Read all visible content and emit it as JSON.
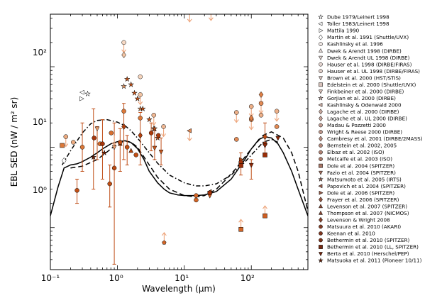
{
  "chart_data": {
    "type": "scatter",
    "title": "",
    "xlabel": "Wavelength (μm)",
    "ylabel": "EBL SED (nW / m² sr)",
    "xscale": "log",
    "yscale": "log",
    "xlim": [
      0.1,
      700
    ],
    "ylim": [
      0.3,
      450
    ],
    "x_tick_labels": [
      "10⁻¹",
      "10⁰",
      "10¹",
      "10²"
    ],
    "y_tick_labels": [
      "10⁰",
      "10¹",
      "10²"
    ],
    "legend_position": "right-outside",
    "legend": [
      "Dube 1979/Leinert 1998",
      "Toller 1983/Leinert 1998",
      "Mattila 1990",
      "Martin et al. 1991 (Shuttle/UVX)",
      "Kashlinsky et al. 1996",
      "Dwek & Arendt 1998 (DIRBE)",
      "Dwek & Arendt UL 1998 (DIRBE)",
      "Hauser et al. 1998 (DIRBE/FIRAS)",
      "Hauser et al. UL 1998 (DIRBE/FIRAS)",
      "Brown et al. 2000 (HST/STIS)",
      "Edelstein et al. 2000 (Shuttle/UVX)",
      "Finkbeiner et al. 2000 (DIRBE)",
      "Gorjian et al. 2000 (DIRBE)",
      "Kashlinsky & Odenwald 2000",
      "Lagache et al. 2000 (DIRBE)",
      "Lagache et al. UL 2000 (DIRBE)",
      "Madau & Pozzetti 2000",
      "Wright & Reese 2000 (DIRBE)",
      "Cambresy et al. 2001 (DIRBE/2MASS)",
      "Bernstein et al. 2002, 2005",
      "Elbaz et al. 2002 (ISO)",
      "Metcalfe et al. 2003 (ISO)",
      "Dole et al. 2004 (SPITZER)",
      "Fazio et al. 2004 (SPITZER)",
      "Matsumoto et al. 2005 (IRTS)",
      "Papovich et al. 2004 (SPITZER)",
      "Dole et al. 2006 (SPITZER)",
      "Frayer et al. 2006 (SPITZER)",
      "Levenson et al. 2007 (SPITZER)",
      "Thompson et al. 2007 (NICMOS)",
      "Levenson & Wright 2008",
      "Matsuura et al. 2010 (AKARI)",
      "Keenan et al. 2010",
      "Bethermin et al. 2010 (SPITZER)",
      "Bethermin et al. 2010 (LL, SPITZER)",
      "Berta et al. 2010 (Herschel/PEP)",
      "Matsuoka et al. 2011 (Pioneer 10/11)"
    ],
    "models": [
      {
        "name": "solid model",
        "style": "solid",
        "x": [
          0.1,
          0.13,
          0.16,
          0.2,
          0.25,
          0.3,
          0.4,
          0.5,
          0.6,
          0.8,
          1.0,
          1.3,
          1.6,
          2.0,
          2.5,
          3.0,
          4.0,
          5.0,
          6.0,
          8.0,
          10,
          15,
          20,
          30,
          50,
          80,
          100,
          130,
          160,
          200,
          250,
          300,
          400,
          500,
          700
        ],
        "y": [
          1.4,
          3.2,
          5.5,
          6.0,
          6.2,
          6.6,
          7.5,
          8.5,
          9.5,
          11.0,
          11.7,
          12.0,
          11.4,
          9.6,
          7.0,
          5.0,
          3.6,
          3.0,
          2.7,
          2.55,
          2.5,
          2.5,
          2.55,
          2.8,
          4.0,
          7.0,
          9.5,
          12.5,
          13.5,
          13.0,
          11.0,
          8.5,
          5.0,
          3.0,
          1.4
        ]
      },
      {
        "name": "dashed model",
        "style": "dashed",
        "x": [
          0.2,
          0.3,
          0.5,
          0.8,
          1.0,
          1.3,
          1.6,
          2.0,
          3.0,
          4.0,
          6.0,
          10,
          15,
          20,
          30,
          40,
          60,
          80,
          100,
          150,
          200,
          300,
          400,
          500,
          700
        ],
        "y": [
          5.5,
          5.8,
          7.0,
          9.5,
          11.0,
          12.0,
          11.5,
          10.0,
          6.0,
          4.2,
          3.0,
          2.5,
          2.4,
          2.5,
          3.0,
          3.8,
          5.5,
          7.5,
          9.5,
          14.0,
          15.5,
          13.0,
          8.5,
          5.0,
          1.6
        ]
      },
      {
        "name": "dash-dot model",
        "style": "dashdot",
        "x": [
          0.15,
          0.2,
          0.3,
          0.4,
          0.5,
          0.7,
          1.0,
          1.3,
          1.6,
          2.0,
          3.0,
          4.0,
          6.0,
          10,
          15,
          20,
          30,
          50,
          80,
          100,
          150,
          200,
          250
        ],
        "y": [
          6.0,
          9.0,
          15.0,
          19.5,
          21.5,
          22.0,
          20.5,
          18.5,
          16.0,
          13.0,
          8.5,
          6.3,
          4.5,
          3.6,
          3.3,
          3.3,
          3.5,
          4.5,
          6.5,
          8.0,
          11.5,
          12.5,
          11.5
        ]
      }
    ],
    "points": [
      {
        "x": 0.36,
        "y": 46,
        "m": "star",
        "c": "#ffffff"
      },
      {
        "x": 0.3,
        "y": 48,
        "m": "tri-left",
        "c": "#ffffff"
      },
      {
        "x": 0.29,
        "y": 40,
        "m": "tri-right",
        "c": "#ffffff"
      },
      {
        "x": 0.16,
        "y": 6.8,
        "m": "diamond",
        "c": "#ffffff"
      },
      {
        "x": 1.25,
        "y": 200,
        "m": "circle",
        "c": "#f7d9c4"
      },
      {
        "x": 2.2,
        "y": 75,
        "m": "circle",
        "c": "#f5d4bc"
      },
      {
        "x": 1.25,
        "y": 140,
        "m": "diamond",
        "c": "#f2c3a2"
      },
      {
        "x": 2.2,
        "y": 45,
        "m": "circle",
        "c": "#f2c3a2"
      },
      {
        "x": 3.5,
        "y": 25,
        "m": "circle",
        "c": "#f0b894"
      },
      {
        "x": 4.9,
        "y": 18,
        "m": "circle",
        "c": "#f0b894"
      },
      {
        "x": 12,
        "y": 480,
        "m": "circle",
        "c": "#eeb088"
      },
      {
        "x": 25,
        "y": 500,
        "m": "circle",
        "c": "#eeb088"
      },
      {
        "x": 60,
        "y": 27,
        "m": "circle",
        "c": "#eeb088"
      },
      {
        "x": 100,
        "y": 32,
        "m": "circle",
        "c": "#eeb088"
      },
      {
        "x": 140,
        "y": 25,
        "m": "circle",
        "c": "#eeb088"
      },
      {
        "x": 240,
        "y": 28,
        "m": "circle",
        "c": "#eeb088"
      },
      {
        "x": 0.22,
        "y": 11.5,
        "m": "circle",
        "c": "#ecab80"
      },
      {
        "x": 0.17,
        "y": 13.5,
        "m": "circle",
        "c": "#ecab80"
      },
      {
        "x": 0.5,
        "y": 17,
        "m": "tri-down",
        "c": "#e89c6c"
      },
      {
        "x": 0.9,
        "y": 10,
        "m": "tri-down",
        "c": "#e89c6c"
      },
      {
        "x": 1.25,
        "y": 57,
        "m": "star",
        "c": "#e7955f"
      },
      {
        "x": 2.2,
        "y": 30,
        "m": "star",
        "c": "#e7955f"
      },
      {
        "x": 3.5,
        "y": 17,
        "m": "star",
        "c": "#e7955f"
      },
      {
        "x": 12,
        "y": 16,
        "m": "tri-left",
        "c": "#e38b55"
      },
      {
        "x": 60,
        "y": 12.5,
        "m": "circle",
        "c": "#e38b55"
      },
      {
        "x": 100,
        "y": 22,
        "m": "circle",
        "c": "#e38b55"
      },
      {
        "x": 140,
        "y": 35,
        "m": "circle",
        "c": "#e38b55"
      },
      {
        "x": 240,
        "y": 18,
        "m": "circle",
        "c": "#e38b55"
      },
      {
        "x": 100,
        "y": 23,
        "m": "diamond",
        "c": "#e07f45"
      },
      {
        "x": 140,
        "y": 45,
        "m": "diamond",
        "c": "#e07f45"
      },
      {
        "x": 1.25,
        "y": 28,
        "m": "circle",
        "c": "#dc7838"
      },
      {
        "x": 2.2,
        "y": 23,
        "m": "circle",
        "c": "#dc7838"
      },
      {
        "x": 0.15,
        "y": 10.5,
        "m": "square",
        "c": "#dc7838"
      },
      {
        "x": 0.3,
        "y": 10,
        "m": "circle",
        "c": "#dc7838"
      },
      {
        "x": 0.55,
        "y": 11,
        "m": "circle",
        "c": "#d96e2e"
      },
      {
        "x": 0.81,
        "y": 15,
        "m": "circle",
        "c": "#d96e2e"
      },
      {
        "x": 15,
        "y": 2.2,
        "m": "circle",
        "c": "#d36526"
      },
      {
        "x": 15,
        "y": 2.5,
        "m": "circle",
        "c": "#d36526"
      },
      {
        "x": 70,
        "y": 0.95,
        "m": "square",
        "c": "#d36526"
      },
      {
        "x": 160,
        "y": 1.4,
        "m": "square",
        "c": "#cf5e20"
      },
      {
        "x": 24,
        "y": 2.5,
        "m": "tri-down",
        "c": "#cf5e20"
      },
      {
        "x": 3.6,
        "y": 9.8,
        "m": "tri-down",
        "c": "#cb581c"
      },
      {
        "x": 4.5,
        "y": 8.8,
        "m": "tri-down",
        "c": "#cb581c"
      },
      {
        "x": 1.4,
        "y": 70,
        "m": "star",
        "c": "#c85318"
      },
      {
        "x": 1.6,
        "y": 60,
        "m": "star",
        "c": "#c85318"
      },
      {
        "x": 1.8,
        "y": 47,
        "m": "star",
        "c": "#c85318"
      },
      {
        "x": 2.0,
        "y": 40,
        "m": "star",
        "c": "#c85318"
      },
      {
        "x": 2.4,
        "y": 30,
        "m": "star",
        "c": "#c85318"
      },
      {
        "x": 3.0,
        "y": 22,
        "m": "star",
        "c": "#c85318"
      },
      {
        "x": 3.6,
        "y": 17,
        "m": "star",
        "c": "#c85318"
      },
      {
        "x": 4.0,
        "y": 13,
        "m": "star",
        "c": "#c85318"
      },
      {
        "x": 24,
        "y": 2.8,
        "m": "tri-left",
        "c": "#c24f15"
      },
      {
        "x": 70,
        "y": 7.0,
        "m": "tri-right",
        "c": "#c24f15"
      },
      {
        "x": 160,
        "y": 13.5,
        "m": "diamond",
        "c": "#bd4a12"
      },
      {
        "x": 0.9,
        "y": 5.5,
        "m": "circle",
        "c": "#bd4a12"
      },
      {
        "x": 1.1,
        "y": 11,
        "m": "triangle",
        "c": "#b8450f"
      },
      {
        "x": 1.6,
        "y": 9,
        "m": "triangle",
        "c": "#b8450f"
      },
      {
        "x": 1.25,
        "y": 18,
        "m": "diamond",
        "c": "#b3400d"
      },
      {
        "x": 2.2,
        "y": 14,
        "m": "diamond",
        "c": "#b3400d"
      },
      {
        "x": 3.2,
        "y": 15,
        "m": "circle",
        "c": "#ad3b0b"
      },
      {
        "x": 4.1,
        "y": 14,
        "m": "circle",
        "c": "#ad3b0b"
      },
      {
        "x": 0.6,
        "y": 11,
        "m": "circle",
        "c": "#a8360a"
      },
      {
        "x": 0.45,
        "y": 13,
        "m": "circle",
        "c": "#a8360a"
      },
      {
        "x": 24,
        "y": 2.7,
        "m": "circle",
        "c": "#a33108"
      },
      {
        "x": 70,
        "y": 6.5,
        "m": "circle",
        "c": "#a33108"
      },
      {
        "x": 160,
        "y": 11,
        "m": "circle",
        "c": "#a33108"
      },
      {
        "x": 70,
        "y": 5.9,
        "m": "square",
        "c": "#9a2c06"
      },
      {
        "x": 160,
        "y": 8.0,
        "m": "square",
        "c": "#9a2c06"
      },
      {
        "x": 100,
        "y": 6.0,
        "m": "tri-down",
        "c": "#8f2705"
      },
      {
        "x": 160,
        "y": 10.5,
        "m": "tri-down",
        "c": "#8f2705"
      },
      {
        "x": 250,
        "y": 13,
        "m": "tri-down",
        "c": "#8f2705"
      },
      {
        "x": 0.44,
        "y": 7.5,
        "m": "star",
        "c": "#6e1c02"
      },
      {
        "x": 0.64,
        "y": 8.5,
        "m": "star",
        "c": "#6e1c02"
      },
      {
        "x": 1.1,
        "y": 11.5,
        "m": "circle",
        "c": "#c24f15"
      },
      {
        "x": 1.4,
        "y": 10,
        "m": "circle",
        "c": "#c24f15"
      },
      {
        "x": 1.9,
        "y": 8,
        "m": "circle",
        "c": "#c24f15"
      },
      {
        "x": 5,
        "y": 0.65,
        "m": "pentagon",
        "c": "#d36526"
      },
      {
        "x": 0.77,
        "y": 3.5,
        "m": "circle",
        "c": "#c24f15"
      },
      {
        "x": 0.25,
        "y": 2.9,
        "m": "circle",
        "c": "#c24f15"
      }
    ],
    "errorbars": [
      {
        "x": 0.5,
        "lo": 7,
        "hi": 18
      },
      {
        "x": 0.9,
        "lo": 0.35,
        "hi": 20
      },
      {
        "x": 0.77,
        "lo": 1.8,
        "hi": 6
      },
      {
        "x": 0.6,
        "lo": 4,
        "hi": 22
      },
      {
        "x": 0.44,
        "lo": 3,
        "hi": 30
      },
      {
        "x": 1.1,
        "lo": 5,
        "hi": 17
      },
      {
        "x": 1.4,
        "lo": 6,
        "hi": 14
      },
      {
        "x": 1.25,
        "lo": 7,
        "hi": 35
      },
      {
        "x": 2.2,
        "lo": 6,
        "hi": 27
      },
      {
        "x": 3.2,
        "lo": 9,
        "hi": 20
      },
      {
        "x": 3.6,
        "lo": 7,
        "hi": 16
      },
      {
        "x": 4.5,
        "lo": 6,
        "hi": 13
      },
      {
        "x": 0.3,
        "lo": 5,
        "hi": 20
      },
      {
        "x": 0.25,
        "lo": 2,
        "hi": 4
      },
      {
        "x": 160,
        "lo": 8,
        "hi": 20
      },
      {
        "x": 70,
        "lo": 4.5,
        "hi": 8.5
      },
      {
        "x": 100,
        "lo": 4,
        "hi": 7
      }
    ],
    "upper_limits": [
      {
        "x": 1.25,
        "y": 200
      },
      {
        "x": 2.2,
        "y": 45
      },
      {
        "x": 3.5,
        "y": 25
      },
      {
        "x": 4.9,
        "y": 18
      },
      {
        "x": 12,
        "y": 480
      },
      {
        "x": 25,
        "y": 500
      },
      {
        "x": 60,
        "y": 27
      },
      {
        "x": 100,
        "y": 32
      },
      {
        "x": 140,
        "y": 35
      },
      {
        "x": 240,
        "y": 28
      },
      {
        "x": 0.17,
        "y": 13.5
      },
      {
        "x": 0.9,
        "y": 14
      },
      {
        "x": 12,
        "y": 16
      },
      {
        "x": 140,
        "y": 45
      },
      {
        "x": 100,
        "y": 22
      }
    ],
    "lower_limits": [
      {
        "x": 70,
        "y": 0.95
      },
      {
        "x": 160,
        "y": 1.4
      },
      {
        "x": 5,
        "y": 0.65
      }
    ]
  }
}
